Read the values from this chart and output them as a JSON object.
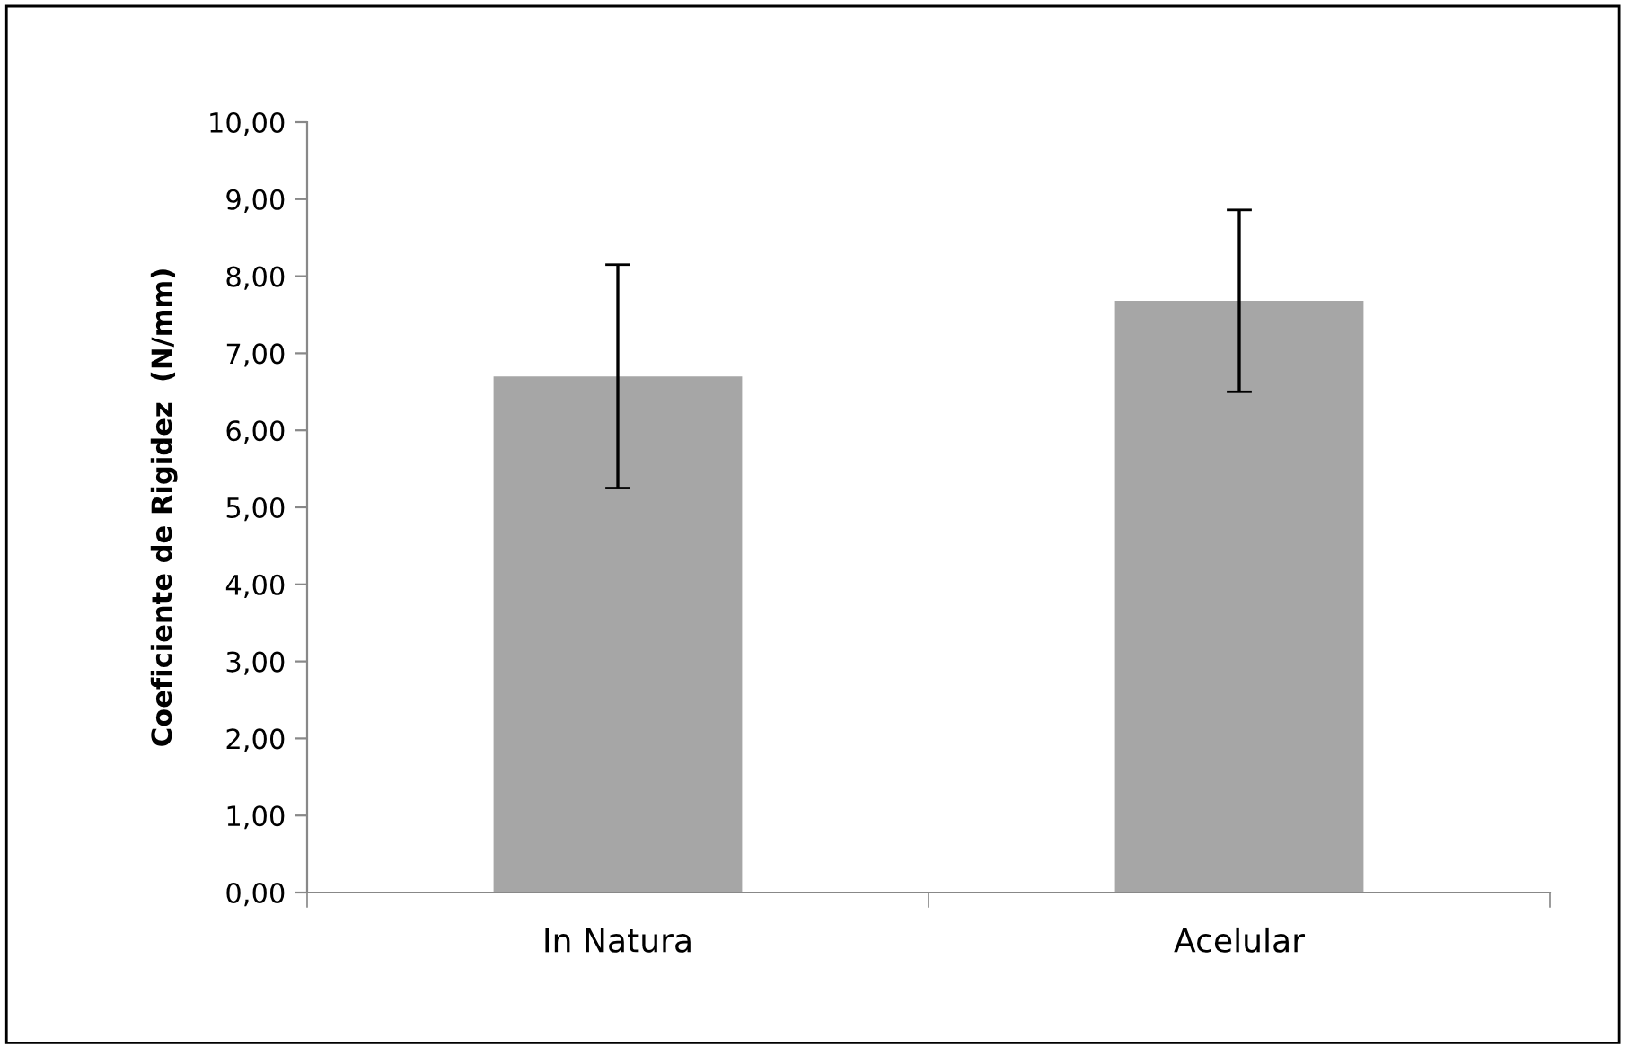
{
  "chart_data": {
    "type": "bar",
    "ylabel": "Coeficiente de Rigidez  (N/mm)",
    "categories": [
      "In Natura",
      "Acelular"
    ],
    "values": [
      6.7,
      7.68
    ],
    "errors": [
      1.45,
      1.18
    ],
    "color": "#a6a6a6",
    "ylim": [
      0,
      10
    ],
    "yticks": [
      {
        "value": 0,
        "label": "0,00"
      },
      {
        "value": 1,
        "label": "1,00"
      },
      {
        "value": 2,
        "label": "2,00"
      },
      {
        "value": 3,
        "label": "3,00"
      },
      {
        "value": 4,
        "label": "4,00"
      },
      {
        "value": 5,
        "label": "5,00"
      },
      {
        "value": 6,
        "label": "6,00"
      },
      {
        "value": 7,
        "label": "7,00"
      },
      {
        "value": 8,
        "label": "8,00"
      },
      {
        "value": 9,
        "label": "9,00"
      },
      {
        "value": 10,
        "label": "10,00"
      }
    ],
    "grid": false,
    "legend": false
  }
}
